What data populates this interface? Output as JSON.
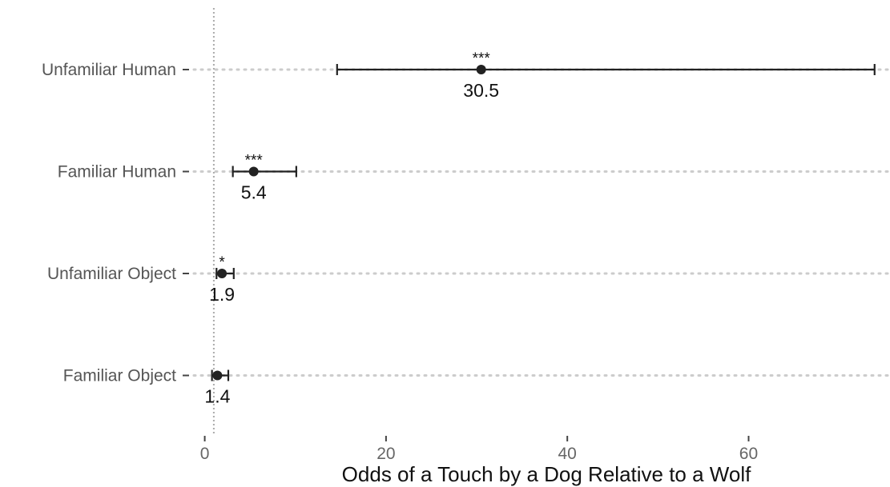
{
  "chart_data": {
    "type": "forest",
    "title": "",
    "xlabel": "Odds of a Touch by a Dog Relative to a Wolf",
    "ylabel": "",
    "xlim": [
      -1.2,
      75.6
    ],
    "xticks": [
      0,
      20,
      40,
      60
    ],
    "xtick_labels": [
      "0",
      "20",
      "40",
      "60"
    ],
    "reference_line_x": 1,
    "grid": "horizontal dotted",
    "rows": [
      {
        "category": "Unfamiliar Human",
        "estimate": 30.5,
        "lower": 14.6,
        "upper": 73.9,
        "value_label": "30.5",
        "significance": "***"
      },
      {
        "category": "Familiar Human",
        "estimate": 5.4,
        "lower": 3.1,
        "upper": 10.1,
        "value_label": "5.4",
        "significance": "***"
      },
      {
        "category": "Unfamiliar Object",
        "estimate": 1.9,
        "lower": 1.3,
        "upper": 3.2,
        "value_label": "1.9",
        "significance": "*"
      },
      {
        "category": "Familiar Object",
        "estimate": 1.4,
        "lower": 0.8,
        "upper": 2.6,
        "value_label": "1.4",
        "significance": ""
      }
    ],
    "colors": {
      "marker": "#222222",
      "grid": "#cccccc",
      "refline": "#aaaaaa"
    }
  }
}
